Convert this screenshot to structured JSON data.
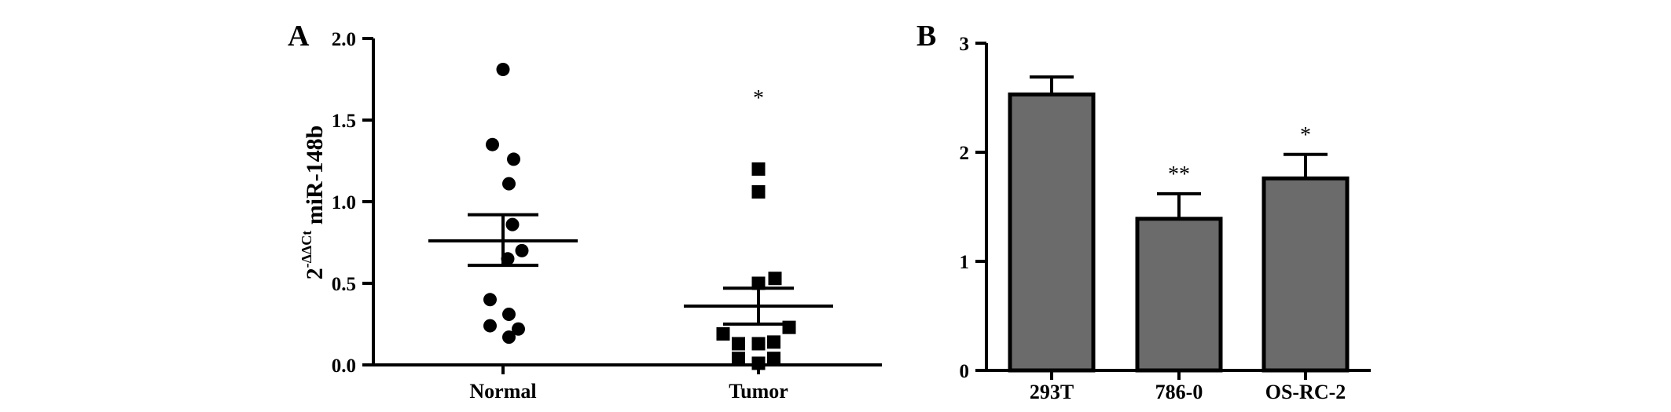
{
  "chart_data": [
    {
      "panel": "A",
      "type": "scatter",
      "ylabel": {
        "base": "2",
        "superscript": "-ΔΔCt",
        "text": " miR-148b"
      },
      "ylim": [
        0,
        2.0
      ],
      "yticks": [
        "0.0",
        "0.5",
        "1.0",
        "1.5",
        "2.0"
      ],
      "categories": [
        "Normal",
        "Tumor"
      ],
      "groups": [
        {
          "name": "Normal",
          "marker": "circle",
          "points": [
            {
              "offset": 0,
              "y": 1.81
            },
            {
              "offset": -0.09,
              "y": 1.35
            },
            {
              "offset": 0.09,
              "y": 1.26
            },
            {
              "offset": 0.05,
              "y": 1.11
            },
            {
              "offset": 0.08,
              "y": 0.86
            },
            {
              "offset": 0.04,
              "y": 0.65
            },
            {
              "offset": 0.16,
              "y": 0.7
            },
            {
              "offset": -0.11,
              "y": 0.4
            },
            {
              "offset": -0.11,
              "y": 0.24
            },
            {
              "offset": 0.05,
              "y": 0.31
            },
            {
              "offset": 0.13,
              "y": 0.22
            },
            {
              "offset": 0.05,
              "y": 0.17
            }
          ],
          "mean": 0.76,
          "sem_upper": 0.92,
          "sem_lower": 0.61
        },
        {
          "name": "Tumor",
          "marker": "square",
          "points": [
            {
              "offset": 0,
              "y": 1.2
            },
            {
              "offset": 0,
              "y": 1.06
            },
            {
              "offset": 0.14,
              "y": 0.53
            },
            {
              "offset": 0,
              "y": 0.5
            },
            {
              "offset": 0.26,
              "y": 0.23
            },
            {
              "offset": -0.3,
              "y": 0.19
            },
            {
              "offset": -0.17,
              "y": 0.13
            },
            {
              "offset": 0,
              "y": 0.13
            },
            {
              "offset": 0.13,
              "y": 0.14
            },
            {
              "offset": -0.17,
              "y": 0.04
            },
            {
              "offset": 0.13,
              "y": 0.04
            },
            {
              "offset": 0,
              "y": 0.01
            }
          ],
          "mean": 0.36,
          "sem_upper": 0.47,
          "sem_lower": 0.25,
          "significance": "*"
        }
      ]
    },
    {
      "panel": "B",
      "type": "bar",
      "ylim": [
        0,
        3
      ],
      "yticks": [
        "0",
        "1",
        "2",
        "3"
      ],
      "categories": [
        "293T",
        "786-0",
        "OS-RC-2"
      ],
      "values": [
        2.53,
        1.39,
        1.76
      ],
      "error_upper": [
        2.69,
        1.62,
        1.98
      ],
      "significance": [
        "",
        "**",
        "*"
      ],
      "bar_color": "#6b6b6b"
    }
  ]
}
